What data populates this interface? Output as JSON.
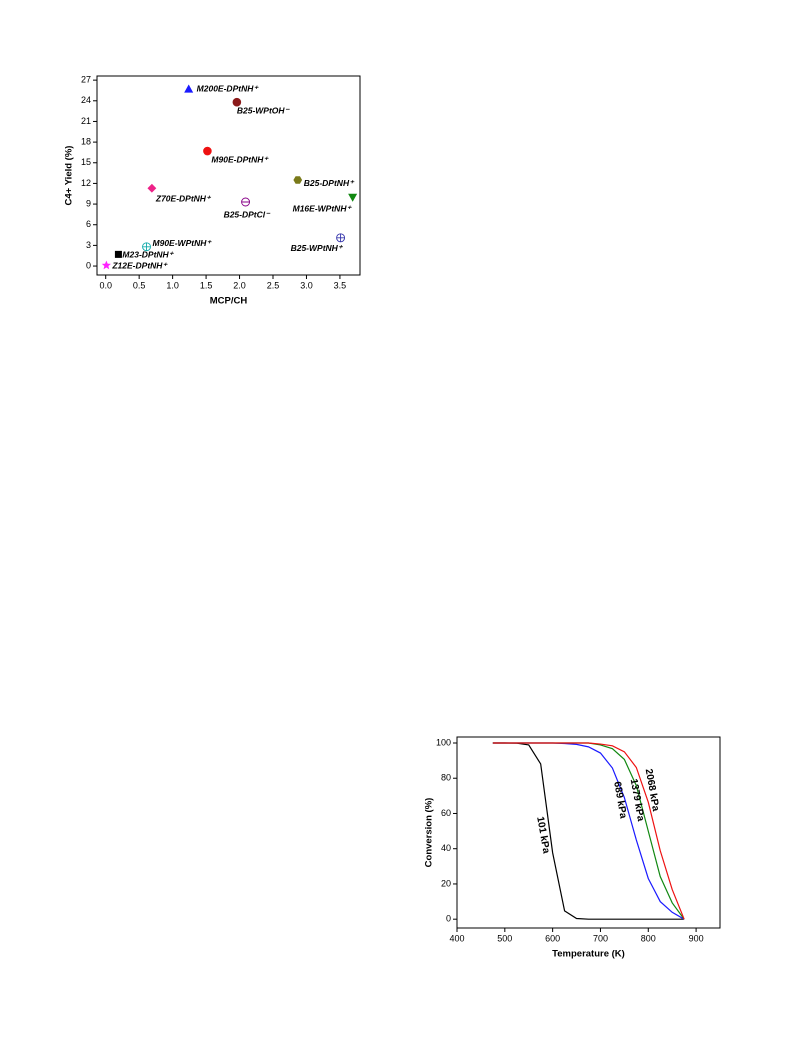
{
  "chart_data": [
    {
      "type": "scatter",
      "x_label": "MCP/CH",
      "y_label": "C4+ Yield (%)",
      "xlim": [
        -0.13,
        3.8
      ],
      "ylim": [
        -1.3,
        27.6
      ],
      "xticks": [
        {
          "value": 0,
          "label": "0.0"
        },
        0.5,
        {
          "value": 1,
          "label": "1.0"
        },
        1.5,
        {
          "value": 2,
          "label": "2.0"
        },
        2.5,
        {
          "value": 3,
          "label": "3.0"
        },
        3.5
      ],
      "yticks": [
        0,
        3,
        6,
        9,
        12,
        15,
        18,
        21,
        24,
        27
      ],
      "points": [
        {
          "label": "M200E-DPtNH⁺",
          "x": 1.24,
          "y": 25.7,
          "color": "#1a1aff",
          "marker": "triangle-up"
        },
        {
          "label": "B25-WPtOH⁻",
          "x": 1.96,
          "y": 23.8,
          "color": "#8b1a1a",
          "marker": "half-circle"
        },
        {
          "label": "M90E-DPtNH⁺",
          "x": 1.52,
          "y": 16.7,
          "color": "#ee1111",
          "marker": "circle"
        },
        {
          "label": "B25-DPtNH⁺",
          "x": 2.87,
          "y": 12.5,
          "color": "#7a7a1a",
          "marker": "hexagon"
        },
        {
          "label": "Z70E-DPtNH⁺",
          "x": 0.69,
          "y": 11.3,
          "color": "#ee2288",
          "marker": "diamond"
        },
        {
          "label": "M16E-WPtNH⁺",
          "x": 3.69,
          "y": 10.0,
          "color": "#118811",
          "marker": "triangle-down"
        },
        {
          "label": "B25-DPtCl⁻",
          "x": 2.09,
          "y": 9.3,
          "color": "#880088",
          "marker": "half-circle-open"
        },
        {
          "label": "B25-WPtNH⁺",
          "x": 3.51,
          "y": 4.1,
          "color": "#3333aa",
          "marker": "circle-cross"
        },
        {
          "label": "M90E-WPtNH⁺",
          "x": 0.61,
          "y": 2.8,
          "color": "#11aaaa",
          "marker": "circle-cross"
        },
        {
          "label": "M23-DPtNH⁺",
          "x": 0.19,
          "y": 1.7,
          "color": "#000000",
          "marker": "square"
        },
        {
          "label": "Z12E-DPtNH⁺",
          "x": 0.01,
          "y": 0.1,
          "color": "#ff22ff",
          "marker": "star"
        }
      ]
    },
    {
      "type": "line",
      "x_label": "Temperature (K)",
      "y_label": "Conversion (%)",
      "xlim": [
        400,
        950
      ],
      "ylim": [
        -5,
        103.4
      ],
      "xticks": [
        400,
        500,
        600,
        700,
        800,
        900
      ],
      "yticks": [
        0,
        20,
        40,
        60,
        80,
        100
      ],
      "x": [
        475,
        500,
        525,
        550,
        575,
        600,
        625,
        650,
        675,
        700,
        725,
        750,
        775,
        800,
        825,
        850,
        875
      ],
      "series": [
        {
          "name": "101 kPa",
          "color": "#000000",
          "values": [
            100,
            100,
            99.9,
            98.9,
            88.1,
            37.7,
            4.7,
            0.4,
            0,
            0,
            0,
            0,
            0,
            0,
            0,
            0,
            0
          ]
        },
        {
          "name": "689 kPa",
          "color": "#1a1aff",
          "values": [
            100,
            100,
            100,
            100,
            100,
            100,
            99.7,
            99.2,
            97.8,
            94.3,
            85.8,
            69.0,
            45.0,
            23.1,
            10.0,
            3.9,
            0
          ]
        },
        {
          "name": "1379 kPa",
          "color": "#118811",
          "values": [
            100,
            100,
            100,
            100,
            100,
            100,
            100,
            100,
            100,
            98.9,
            96.8,
            90.7,
            75.8,
            50,
            24.2,
            9.3,
            0
          ]
        },
        {
          "name": "2068 kPa",
          "color": "#ee1111",
          "values": [
            100,
            100,
            100,
            100,
            100,
            100,
            100,
            100,
            100,
            99.4,
            98.4,
            95.0,
            86.1,
            66.4,
            38.9,
            16.9,
            0
          ]
        }
      ]
    }
  ]
}
